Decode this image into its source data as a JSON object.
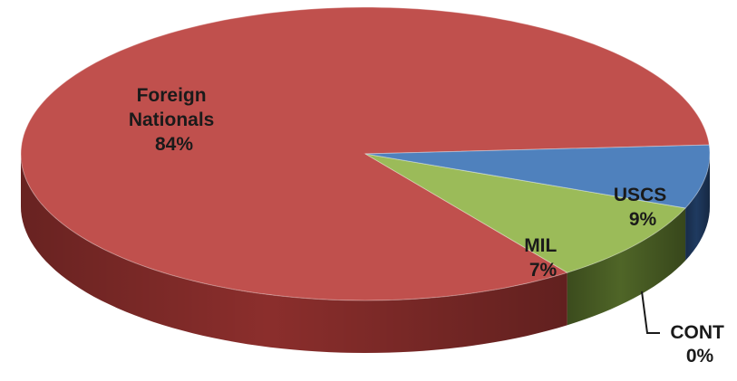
{
  "chart_data": {
    "type": "pie",
    "style": "3d",
    "categories": [
      "Foreign Nationals",
      "USCS",
      "MIL",
      "CONT"
    ],
    "values": [
      84,
      9,
      7,
      0
    ],
    "labels": [
      {
        "name_lines": [
          "Foreign",
          "Nationals"
        ],
        "pct": "84%"
      },
      {
        "name_lines": [
          "USCS"
        ],
        "pct": "9%"
      },
      {
        "name_lines": [
          "MIL"
        ],
        "pct": "7%"
      },
      {
        "name_lines": [
          "CONT"
        ],
        "pct": "0%"
      }
    ],
    "colors": {
      "Foreign Nationals": "#c0504d",
      "USCS": "#9bbb59",
      "MIL": "#4f81bd",
      "CONT": "#8064a2"
    },
    "side_colors": {
      "Foreign Nationals": "#8b2e2c",
      "USCS": "#4f6527",
      "MIL": "#1f3a60",
      "CONT": "#4e3a6a"
    },
    "legend": "none"
  }
}
